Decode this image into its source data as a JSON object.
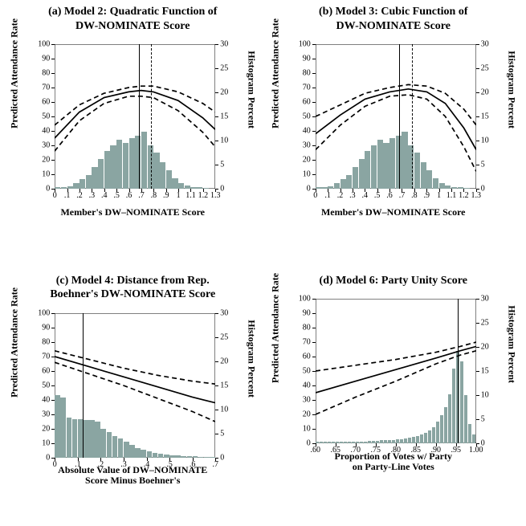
{
  "common": {
    "ylabel_left": "Predicted Attendance Rate",
    "ylabel_right": "Histogram Percent",
    "yl_min": 0,
    "yl_max": 100,
    "yl_step": 10,
    "yr_min": 0,
    "yr_max": 30,
    "yr_step": 5,
    "label_fontsize": 12,
    "tick_fontsize": 10,
    "bar_color": "#8aa5a2",
    "curve_color": "#000000",
    "curve_width": 1.7,
    "dash_pattern": "6,4",
    "background_color": "#ffffff",
    "title_fontsize": 14
  },
  "panels": {
    "a": {
      "title_l1": "(a) Model 2: Quadratic Function of",
      "title_l2": "DW-NOMINATE Score",
      "xlabel_l1": "Member's DW–NOMINATE Score",
      "xlabel_l2": "",
      "x_min": 0,
      "x_max": 1.3,
      "x_step": 0.1,
      "vline_solid": 0.68,
      "vline_dashed": 0.78,
      "bars": [
        [
          0.025,
          0.3
        ],
        [
          0.075,
          0.3
        ],
        [
          0.125,
          0.5
        ],
        [
          0.175,
          1.2
        ],
        [
          0.225,
          2.0
        ],
        [
          0.275,
          2.8
        ],
        [
          0.325,
          4.5
        ],
        [
          0.375,
          6.2
        ],
        [
          0.425,
          7.8
        ],
        [
          0.475,
          9.0
        ],
        [
          0.525,
          10.2
        ],
        [
          0.575,
          9.5
        ],
        [
          0.625,
          10.5
        ],
        [
          0.675,
          11.0
        ],
        [
          0.725,
          11.8
        ],
        [
          0.775,
          9.0
        ],
        [
          0.825,
          7.5
        ],
        [
          0.875,
          5.5
        ],
        [
          0.925,
          3.8
        ],
        [
          0.975,
          2.2
        ],
        [
          1.025,
          1.2
        ],
        [
          1.075,
          0.6
        ],
        [
          1.125,
          0.4
        ],
        [
          1.175,
          0.3
        ],
        [
          1.225,
          0.2
        ]
      ],
      "curves": {
        "mid": [
          [
            0,
            35
          ],
          [
            0.2,
            53
          ],
          [
            0.4,
            63
          ],
          [
            0.6,
            67
          ],
          [
            0.7,
            68
          ],
          [
            0.8,
            67
          ],
          [
            1.0,
            61
          ],
          [
            1.2,
            49
          ],
          [
            1.3,
            41
          ]
        ],
        "up": [
          [
            0,
            44
          ],
          [
            0.2,
            58
          ],
          [
            0.4,
            66
          ],
          [
            0.6,
            70
          ],
          [
            0.7,
            71
          ],
          [
            0.8,
            71
          ],
          [
            1.0,
            67
          ],
          [
            1.2,
            59
          ],
          [
            1.3,
            53
          ]
        ],
        "low": [
          [
            0,
            26
          ],
          [
            0.2,
            47
          ],
          [
            0.4,
            59
          ],
          [
            0.6,
            64
          ],
          [
            0.7,
            64
          ],
          [
            0.8,
            63
          ],
          [
            1.0,
            54
          ],
          [
            1.2,
            39
          ],
          [
            1.3,
            29
          ]
        ]
      }
    },
    "b": {
      "title_l1": "(b) Model 3: Cubic Function of",
      "title_l2": "DW-NOMINATE Score",
      "xlabel_l1": "Member's DW–NOMINATE Score",
      "xlabel_l2": "",
      "x_min": 0,
      "x_max": 1.3,
      "x_step": 0.1,
      "vline_solid": 0.68,
      "vline_dashed": 0.78,
      "bars": [
        [
          0.025,
          0.3
        ],
        [
          0.075,
          0.3
        ],
        [
          0.125,
          0.5
        ],
        [
          0.175,
          1.2
        ],
        [
          0.225,
          2.0
        ],
        [
          0.275,
          2.8
        ],
        [
          0.325,
          4.5
        ],
        [
          0.375,
          6.2
        ],
        [
          0.425,
          7.8
        ],
        [
          0.475,
          9.0
        ],
        [
          0.525,
          10.2
        ],
        [
          0.575,
          9.5
        ],
        [
          0.625,
          10.5
        ],
        [
          0.675,
          11.0
        ],
        [
          0.725,
          11.8
        ],
        [
          0.775,
          9.0
        ],
        [
          0.825,
          7.5
        ],
        [
          0.875,
          5.5
        ],
        [
          0.925,
          3.8
        ],
        [
          0.975,
          2.2
        ],
        [
          1.025,
          1.2
        ],
        [
          1.075,
          0.6
        ],
        [
          1.125,
          0.4
        ],
        [
          1.175,
          0.3
        ],
        [
          1.225,
          0.2
        ]
      ],
      "curves": {
        "mid": [
          [
            0,
            38
          ],
          [
            0.2,
            51
          ],
          [
            0.4,
            62
          ],
          [
            0.6,
            67
          ],
          [
            0.75,
            69
          ],
          [
            0.9,
            67
          ],
          [
            1.05,
            59
          ],
          [
            1.2,
            42
          ],
          [
            1.3,
            27
          ]
        ],
        "up": [
          [
            0,
            50
          ],
          [
            0.2,
            58
          ],
          [
            0.4,
            66
          ],
          [
            0.6,
            70
          ],
          [
            0.75,
            72
          ],
          [
            0.9,
            71
          ],
          [
            1.05,
            66
          ],
          [
            1.2,
            55
          ],
          [
            1.3,
            44
          ]
        ],
        "low": [
          [
            0,
            27
          ],
          [
            0.2,
            44
          ],
          [
            0.4,
            57
          ],
          [
            0.6,
            64
          ],
          [
            0.75,
            65
          ],
          [
            0.9,
            62
          ],
          [
            1.05,
            50
          ],
          [
            1.2,
            29
          ],
          [
            1.3,
            12
          ]
        ]
      }
    },
    "c": {
      "title_l1": "(c) Model 4: Distance from Rep.",
      "title_l2": "Boehner's DW-NOMINATE Score",
      "xlabel_l1": "Absolute Value of DW–NOMINATE",
      "xlabel_l2": "Score Minus Boehner's",
      "x_min": 0,
      "x_max": 0.7,
      "x_step": 0.1,
      "vline_solid": 0.12,
      "vline_dashed": null,
      "bars": [
        [
          0.0125,
          13.0
        ],
        [
          0.0375,
          12.5
        ],
        [
          0.0625,
          8.2
        ],
        [
          0.0875,
          8.0
        ],
        [
          0.1125,
          8.0
        ],
        [
          0.1375,
          7.8
        ],
        [
          0.1625,
          7.8
        ],
        [
          0.1875,
          7.5
        ],
        [
          0.2125,
          6.0
        ],
        [
          0.2375,
          5.2
        ],
        [
          0.2625,
          4.5
        ],
        [
          0.2875,
          4.0
        ],
        [
          0.3125,
          3.2
        ],
        [
          0.3375,
          2.6
        ],
        [
          0.3625,
          2.0
        ],
        [
          0.3875,
          1.6
        ],
        [
          0.4125,
          1.3
        ],
        [
          0.4375,
          1.0
        ],
        [
          0.4625,
          0.8
        ],
        [
          0.4875,
          0.6
        ],
        [
          0.5125,
          0.5
        ],
        [
          0.5375,
          0.4
        ],
        [
          0.5625,
          0.3
        ],
        [
          0.5875,
          0.25
        ],
        [
          0.6125,
          0.2
        ],
        [
          0.6375,
          0.15
        ],
        [
          0.6625,
          0.12
        ],
        [
          0.6875,
          0.1
        ]
      ],
      "curves": {
        "mid": [
          [
            0,
            70
          ],
          [
            0.15,
            63
          ],
          [
            0.3,
            56
          ],
          [
            0.45,
            49
          ],
          [
            0.6,
            42
          ],
          [
            0.7,
            38
          ]
        ],
        "up": [
          [
            0,
            74
          ],
          [
            0.15,
            68
          ],
          [
            0.3,
            62
          ],
          [
            0.45,
            57
          ],
          [
            0.6,
            53
          ],
          [
            0.7,
            51
          ]
        ],
        "low": [
          [
            0,
            66
          ],
          [
            0.15,
            58
          ],
          [
            0.3,
            50
          ],
          [
            0.45,
            41
          ],
          [
            0.6,
            32
          ],
          [
            0.7,
            25
          ]
        ]
      }
    },
    "d": {
      "title_l1": "(d) Model 6: Party Unity Score",
      "title_l2": "",
      "xlabel_l1": "Proportion of Votes w/ Party",
      "xlabel_l2": "on Party-Line Votes",
      "x_min": 0.6,
      "x_max": 1.0,
      "x_step": 0.05,
      "vline_solid": 0.955,
      "vline_dashed": null,
      "bars": [
        [
          0.605,
          0.3
        ],
        [
          0.615,
          0.3
        ],
        [
          0.625,
          0.3
        ],
        [
          0.635,
          0.3
        ],
        [
          0.645,
          0.3
        ],
        [
          0.655,
          0.4
        ],
        [
          0.665,
          0.4
        ],
        [
          0.675,
          0.4
        ],
        [
          0.685,
          0.4
        ],
        [
          0.695,
          0.4
        ],
        [
          0.705,
          0.4
        ],
        [
          0.715,
          0.4
        ],
        [
          0.725,
          0.4
        ],
        [
          0.735,
          0.5
        ],
        [
          0.745,
          0.5
        ],
        [
          0.755,
          0.5
        ],
        [
          0.765,
          0.6
        ],
        [
          0.775,
          0.6
        ],
        [
          0.785,
          0.6
        ],
        [
          0.795,
          0.7
        ],
        [
          0.805,
          0.8
        ],
        [
          0.815,
          0.9
        ],
        [
          0.825,
          1.0
        ],
        [
          0.835,
          1.1
        ],
        [
          0.845,
          1.3
        ],
        [
          0.855,
          1.5
        ],
        [
          0.865,
          1.8
        ],
        [
          0.875,
          2.2
        ],
        [
          0.885,
          2.7
        ],
        [
          0.895,
          3.4
        ],
        [
          0.905,
          4.5
        ],
        [
          0.915,
          5.8
        ],
        [
          0.925,
          7.5
        ],
        [
          0.935,
          10.2
        ],
        [
          0.945,
          15.5
        ],
        [
          0.955,
          19.2
        ],
        [
          0.965,
          17.0
        ],
        [
          0.975,
          10.0
        ],
        [
          0.985,
          4.0
        ],
        [
          0.995,
          1.8
        ]
      ],
      "curves": {
        "mid": [
          [
            0.6,
            35
          ],
          [
            0.7,
            43
          ],
          [
            0.8,
            51
          ],
          [
            0.9,
            59
          ],
          [
            0.96,
            64
          ],
          [
            1.0,
            67
          ]
        ],
        "up": [
          [
            0.6,
            50
          ],
          [
            0.7,
            54
          ],
          [
            0.8,
            58
          ],
          [
            0.9,
            63
          ],
          [
            0.96,
            67
          ],
          [
            1.0,
            70
          ]
        ],
        "low": [
          [
            0.6,
            20
          ],
          [
            0.7,
            32
          ],
          [
            0.8,
            43
          ],
          [
            0.9,
            55
          ],
          [
            0.96,
            61
          ],
          [
            1.0,
            64
          ]
        ]
      }
    }
  }
}
